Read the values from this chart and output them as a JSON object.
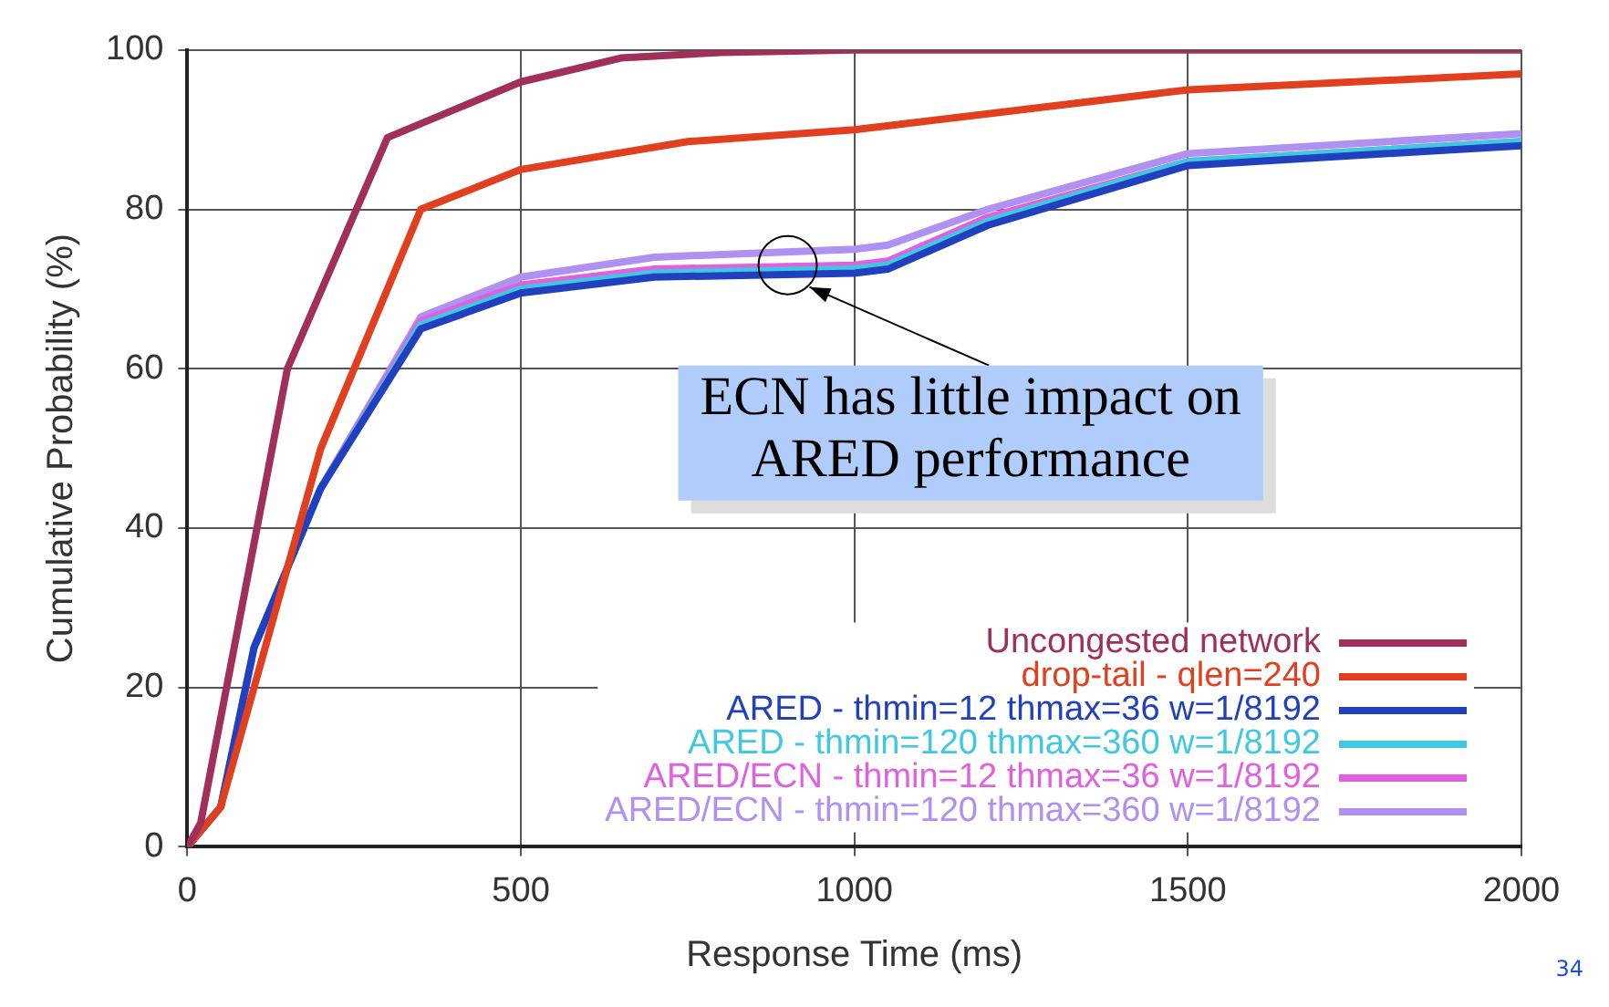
{
  "chart_data": {
    "type": "line",
    "xlabel": "Response Time (ms)",
    "ylabel": "Cumulative Probability (%)",
    "xlim": [
      0,
      2000
    ],
    "xticks": [
      0,
      500,
      1000,
      1500,
      2000
    ],
    "ylim": [
      0,
      100
    ],
    "yticks": [
      0,
      20,
      40,
      60,
      80,
      100
    ],
    "grid": true,
    "legend": "bottom right",
    "marker": "none",
    "line_style": "solid",
    "annotations": [
      {
        "text": "ECN has little impact on\nARED performance",
        "x": 900,
        "y": 73
      },
      "34"
    ],
    "series": [
      {
        "name": "Uncongested network",
        "color": "#a0305a",
        "x": [
          0,
          20,
          150,
          300,
          500,
          650,
          800,
          1000,
          2000
        ],
        "values": [
          0,
          3,
          60,
          89,
          96,
          99,
          99.7,
          100,
          100
        ]
      },
      {
        "name": "drop-tail - qlen=240",
        "color": "#e04020",
        "x": [
          0,
          50,
          200,
          350,
          500,
          750,
          1000,
          1100,
          1500,
          2000
        ],
        "values": [
          0,
          5,
          50,
          80,
          85,
          88.5,
          90,
          91,
          95,
          97
        ]
      },
      {
        "name": "ARED - thmin=12 thmax=36 w=1/8192",
        "color": "#2040c0",
        "x": [
          0,
          50,
          100,
          200,
          350,
          500,
          700,
          1000,
          1050,
          1200,
          1500,
          2000
        ],
        "values": [
          0,
          5,
          25,
          45,
          65,
          69.5,
          71.5,
          72,
          72.5,
          78,
          85.5,
          88
        ]
      },
      {
        "name": "ARED - thmin=120 thmax=360 w=1/8192",
        "color": "#40c8e0",
        "x": [
          100,
          200,
          350,
          500,
          700,
          1000,
          1050,
          1200,
          1500,
          2000
        ],
        "values": [
          25,
          45,
          65.5,
          70,
          72,
          72.5,
          73,
          78.5,
          86,
          88.5
        ]
      },
      {
        "name": "ARED/ECN - thmin=12 thmax=36 w=1/8192",
        "color": "#e060e0",
        "x": [
          100,
          200,
          350,
          500,
          700,
          1000,
          1050,
          1200,
          1500,
          2000
        ],
        "values": [
          25,
          45,
          66,
          70.5,
          72.5,
          73,
          73.5,
          79,
          86,
          88.5
        ]
      },
      {
        "name": "ARED/ECN - thmin=120 thmax=360 w=1/8192",
        "color": "#b090f0",
        "x": [
          0,
          50,
          100,
          200,
          350,
          500,
          700,
          1000,
          1050,
          1200,
          1500,
          2000
        ],
        "values": [
          0,
          5,
          25,
          45,
          66.5,
          71.5,
          74,
          75,
          75.5,
          80,
          87,
          89.5
        ]
      }
    ]
  }
}
